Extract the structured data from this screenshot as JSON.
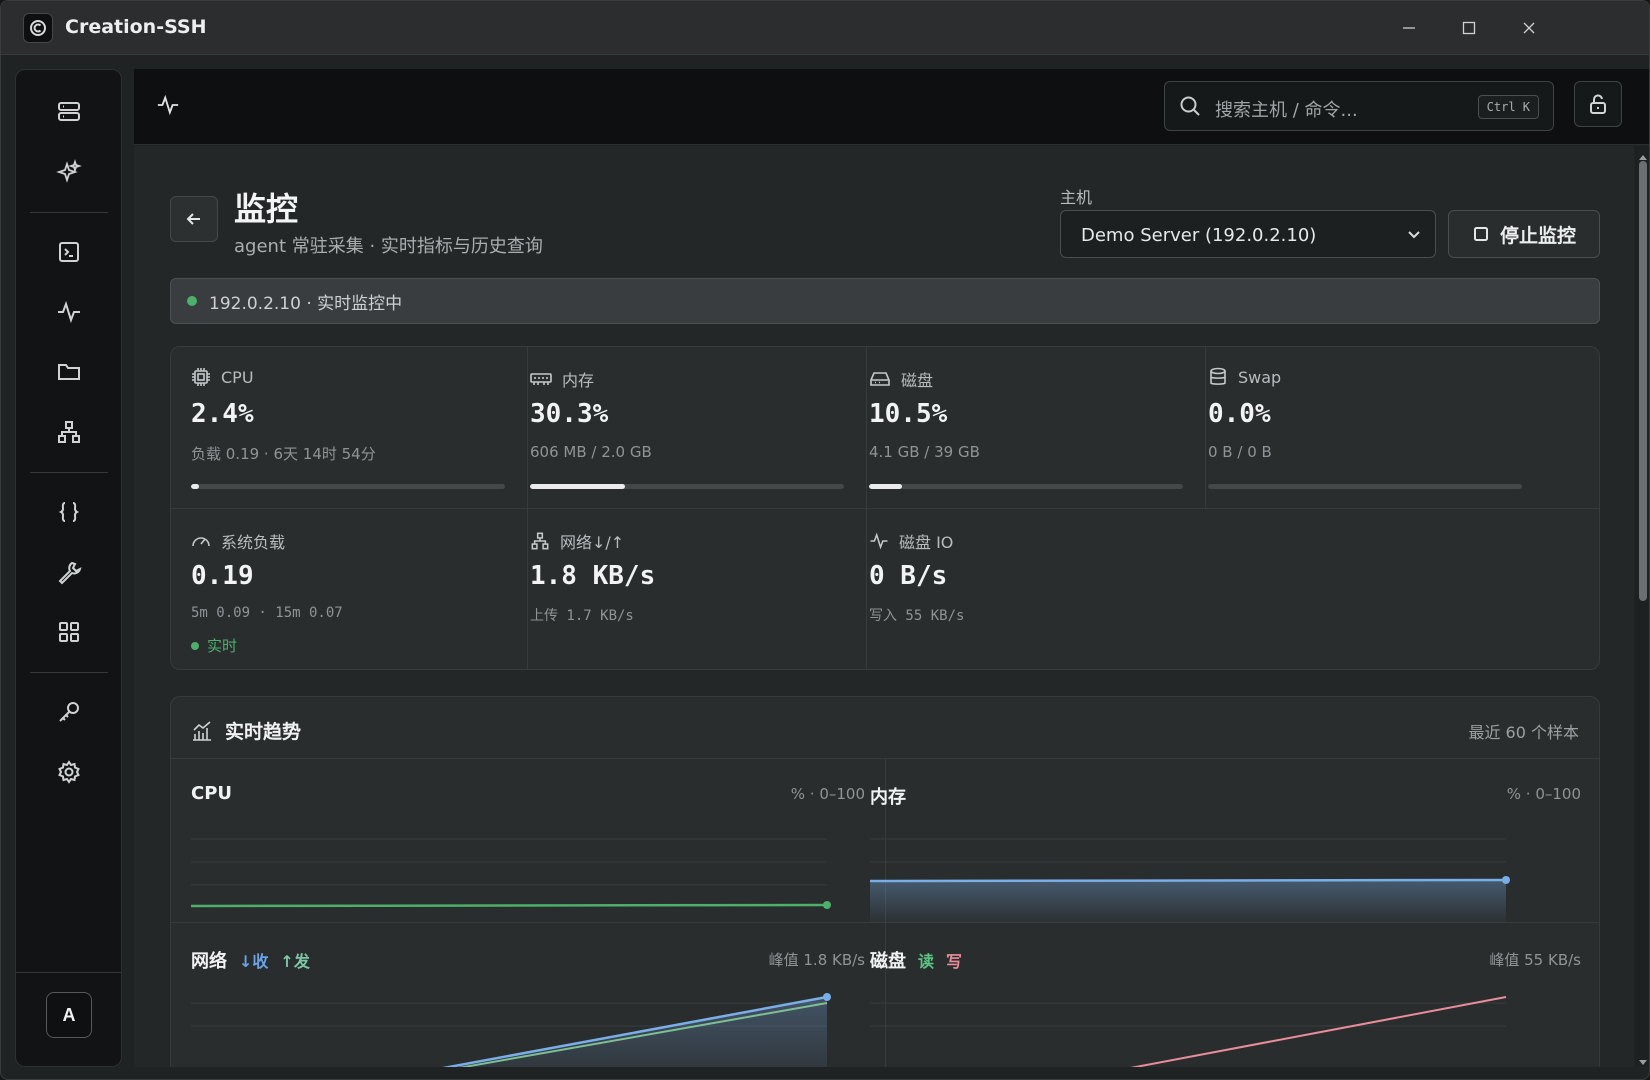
{
  "app": {
    "title": "Creation-SSH"
  },
  "search": {
    "placeholder": "搜索主机 / 命令...",
    "shortcut": "Ctrl K"
  },
  "page": {
    "title": "监控",
    "subtitle": "agent 常驻采集 · 实时指标与历史查询"
  },
  "host": {
    "label": "主机",
    "selected": "Demo Server (192.0.2.10)",
    "stop_label": "停止监控"
  },
  "status": {
    "text": "192.0.2.10 · 实时监控中",
    "color": "#4caf6a"
  },
  "metrics": {
    "cpu": {
      "label": "CPU",
      "value": "2.4%",
      "sub": "负载 0.19 · 6天 14时 54分",
      "fraction": 0.024
    },
    "mem": {
      "label": "内存",
      "value": "30.3%",
      "sub": "606 MB / 2.0 GB",
      "fraction": 0.303
    },
    "disk": {
      "label": "磁盘",
      "value": "10.5%",
      "sub": "4.1 GB / 39 GB",
      "fraction": 0.105
    },
    "swap": {
      "label": "Swap",
      "value": "0.0%",
      "sub": "0 B / 0 B",
      "fraction": 0.0
    },
    "load": {
      "label": "系统负载",
      "value": "0.19",
      "sub": "5m 0.09 · 15m 0.07",
      "live": "实时"
    },
    "net": {
      "label": "网络↓/↑",
      "value": "1.8 KB/s",
      "sub": "上传 1.7 KB/s"
    },
    "diskio": {
      "label": "磁盘 IO",
      "value": "0 B/s",
      "sub": "写入 55 KB/s"
    }
  },
  "trends": {
    "title": "实时趋势",
    "note": "最近 60 个样本",
    "cpu": {
      "title": "CPU",
      "range": "% · 0–100"
    },
    "mem": {
      "title": "内存",
      "range": "% · 0–100"
    },
    "net": {
      "title": "网络",
      "legend_in": "↓收",
      "legend_out": "↑发",
      "peak": "峰值 1.8 KB/s"
    },
    "disk": {
      "title": "磁盘",
      "legend_read": "读",
      "legend_write": "写",
      "peak": "峰值 55 KB/s"
    }
  },
  "sidebar": {
    "avatar": "A"
  },
  "colors": {
    "cpu_line": "#4caf6a",
    "mem_line": "#7aaee8",
    "net_in": "#7aaee8",
    "net_out": "#7fbf95",
    "disk_write": "#e88e9b"
  }
}
